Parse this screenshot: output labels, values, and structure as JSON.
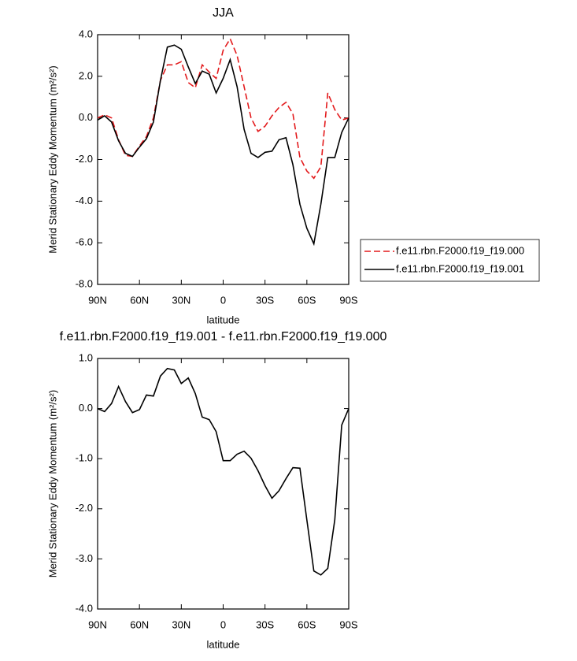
{
  "chart_data": [
    {
      "type": "line",
      "title": "JJA",
      "xlabel": "latitude",
      "ylabel": "Merid Stationary Eddy Momentum (m²/s²)",
      "x": [
        90,
        85,
        80,
        75,
        70,
        65,
        60,
        55,
        50,
        45,
        40,
        35,
        30,
        25,
        20,
        15,
        10,
        5,
        0,
        -5,
        -10,
        -15,
        -20,
        -25,
        -30,
        -35,
        -40,
        -45,
        -50,
        -55,
        -60,
        -65,
        -70,
        -75,
        -80,
        -85,
        -90
      ],
      "xlim": [
        90,
        -90
      ],
      "xticks": [
        {
          "value": 90,
          "label": "90N"
        },
        {
          "value": 60,
          "label": "60N"
        },
        {
          "value": 30,
          "label": "30N"
        },
        0,
        {
          "value": -30,
          "label": "30S"
        },
        {
          "value": -60,
          "label": "60S"
        },
        {
          "value": -90,
          "label": "90S"
        }
      ],
      "ylim": [
        -8,
        4
      ],
      "yticks": [
        {
          "value": 4,
          "label": "4.0"
        },
        {
          "value": 2,
          "label": "2.0"
        },
        {
          "value": 0,
          "label": "0.0"
        },
        {
          "value": -2,
          "label": "-2.0"
        },
        {
          "value": -4,
          "label": "-4.0"
        },
        {
          "value": -6,
          "label": "-6.0"
        },
        {
          "value": -8,
          "label": "-8.0"
        }
      ],
      "legend": "right",
      "series": [
        {
          "name": "f.e11.rbn.F2000.f19_f19.000",
          "color": "#e31a1c",
          "linestyle": "dashed",
          "values": [
            0,
            0.15,
            0,
            -1.05,
            -1.8,
            -1.85,
            -1.35,
            -0.9,
            0,
            1.8,
            2.55,
            2.55,
            2.7,
            1.7,
            1.45,
            2.55,
            2.2,
            1.9,
            3.25,
            3.8,
            3.0,
            1.5,
            0,
            -0.65,
            -0.4,
            0.1,
            0.5,
            0.75,
            0.2,
            -1.9,
            -2.55,
            -2.9,
            -2.35,
            1.2,
            0.4,
            -0.1,
            0
          ]
        },
        {
          "name": "f.e11.rbn.F2000.f19_f19.001",
          "color": "#000000",
          "linestyle": "solid",
          "values": [
            -0.1,
            0.1,
            -0.2,
            -1.1,
            -1.7,
            -1.85,
            -1.4,
            -1.0,
            -0.2,
            1.8,
            3.4,
            3.5,
            3.3,
            2.45,
            1.65,
            2.25,
            2.1,
            1.2,
            1.9,
            2.8,
            1.5,
            -0.55,
            -1.7,
            -1.9,
            -1.65,
            -1.6,
            -1.05,
            -0.95,
            -2.25,
            -4.15,
            -5.3,
            -6.05,
            -4.15,
            -1.9,
            -1.9,
            -0.7,
            0
          ]
        }
      ]
    },
    {
      "type": "line",
      "title": "f.e11.rbn.F2000.f19_f19.001 - f.e11.rbn.F2000.f19_f19.000",
      "xlabel": "latitude",
      "ylabel": "Merid Stationary Eddy Momentum (m²/s²)",
      "x": [
        90,
        85,
        80,
        75,
        70,
        65,
        60,
        55,
        50,
        45,
        40,
        35,
        30,
        25,
        20,
        15,
        10,
        5,
        0,
        -5,
        -10,
        -15,
        -20,
        -25,
        -30,
        -35,
        -40,
        -45,
        -50,
        -55,
        -60,
        -65,
        -70,
        -75,
        -80,
        -85,
        -90
      ],
      "xlim": [
        90,
        -90
      ],
      "xticks": [
        {
          "value": 90,
          "label": "90N"
        },
        {
          "value": 60,
          "label": "60N"
        },
        {
          "value": 30,
          "label": "30N"
        },
        0,
        {
          "value": -30,
          "label": "30S"
        },
        {
          "value": -60,
          "label": "60S"
        },
        {
          "value": -90,
          "label": "90S"
        }
      ],
      "ylim": [
        -4,
        1
      ],
      "yticks": [
        {
          "value": 1,
          "label": "1.0"
        },
        {
          "value": 0,
          "label": "0.0"
        },
        {
          "value": -1,
          "label": "-1.0"
        },
        {
          "value": -2,
          "label": "-2.0"
        },
        {
          "value": -3,
          "label": "-3.0"
        },
        {
          "value": -4,
          "label": "-4.0"
        }
      ],
      "series": [
        {
          "color": "#000000",
          "linestyle": "solid",
          "values": [
            0,
            -0.06,
            0.1,
            0.44,
            0.14,
            -0.08,
            -0.02,
            0.27,
            0.25,
            0.65,
            0.8,
            0.77,
            0.5,
            0.61,
            0.3,
            -0.17,
            -0.22,
            -0.46,
            -1.04,
            -1.04,
            -0.91,
            -0.85,
            -0.99,
            -1.24,
            -1.54,
            -1.79,
            -1.64,
            -1.4,
            -1.18,
            -1.19,
            -2.22,
            -3.24,
            -3.32,
            -3.19,
            -2.22,
            -0.33,
            0
          ]
        }
      ]
    }
  ]
}
